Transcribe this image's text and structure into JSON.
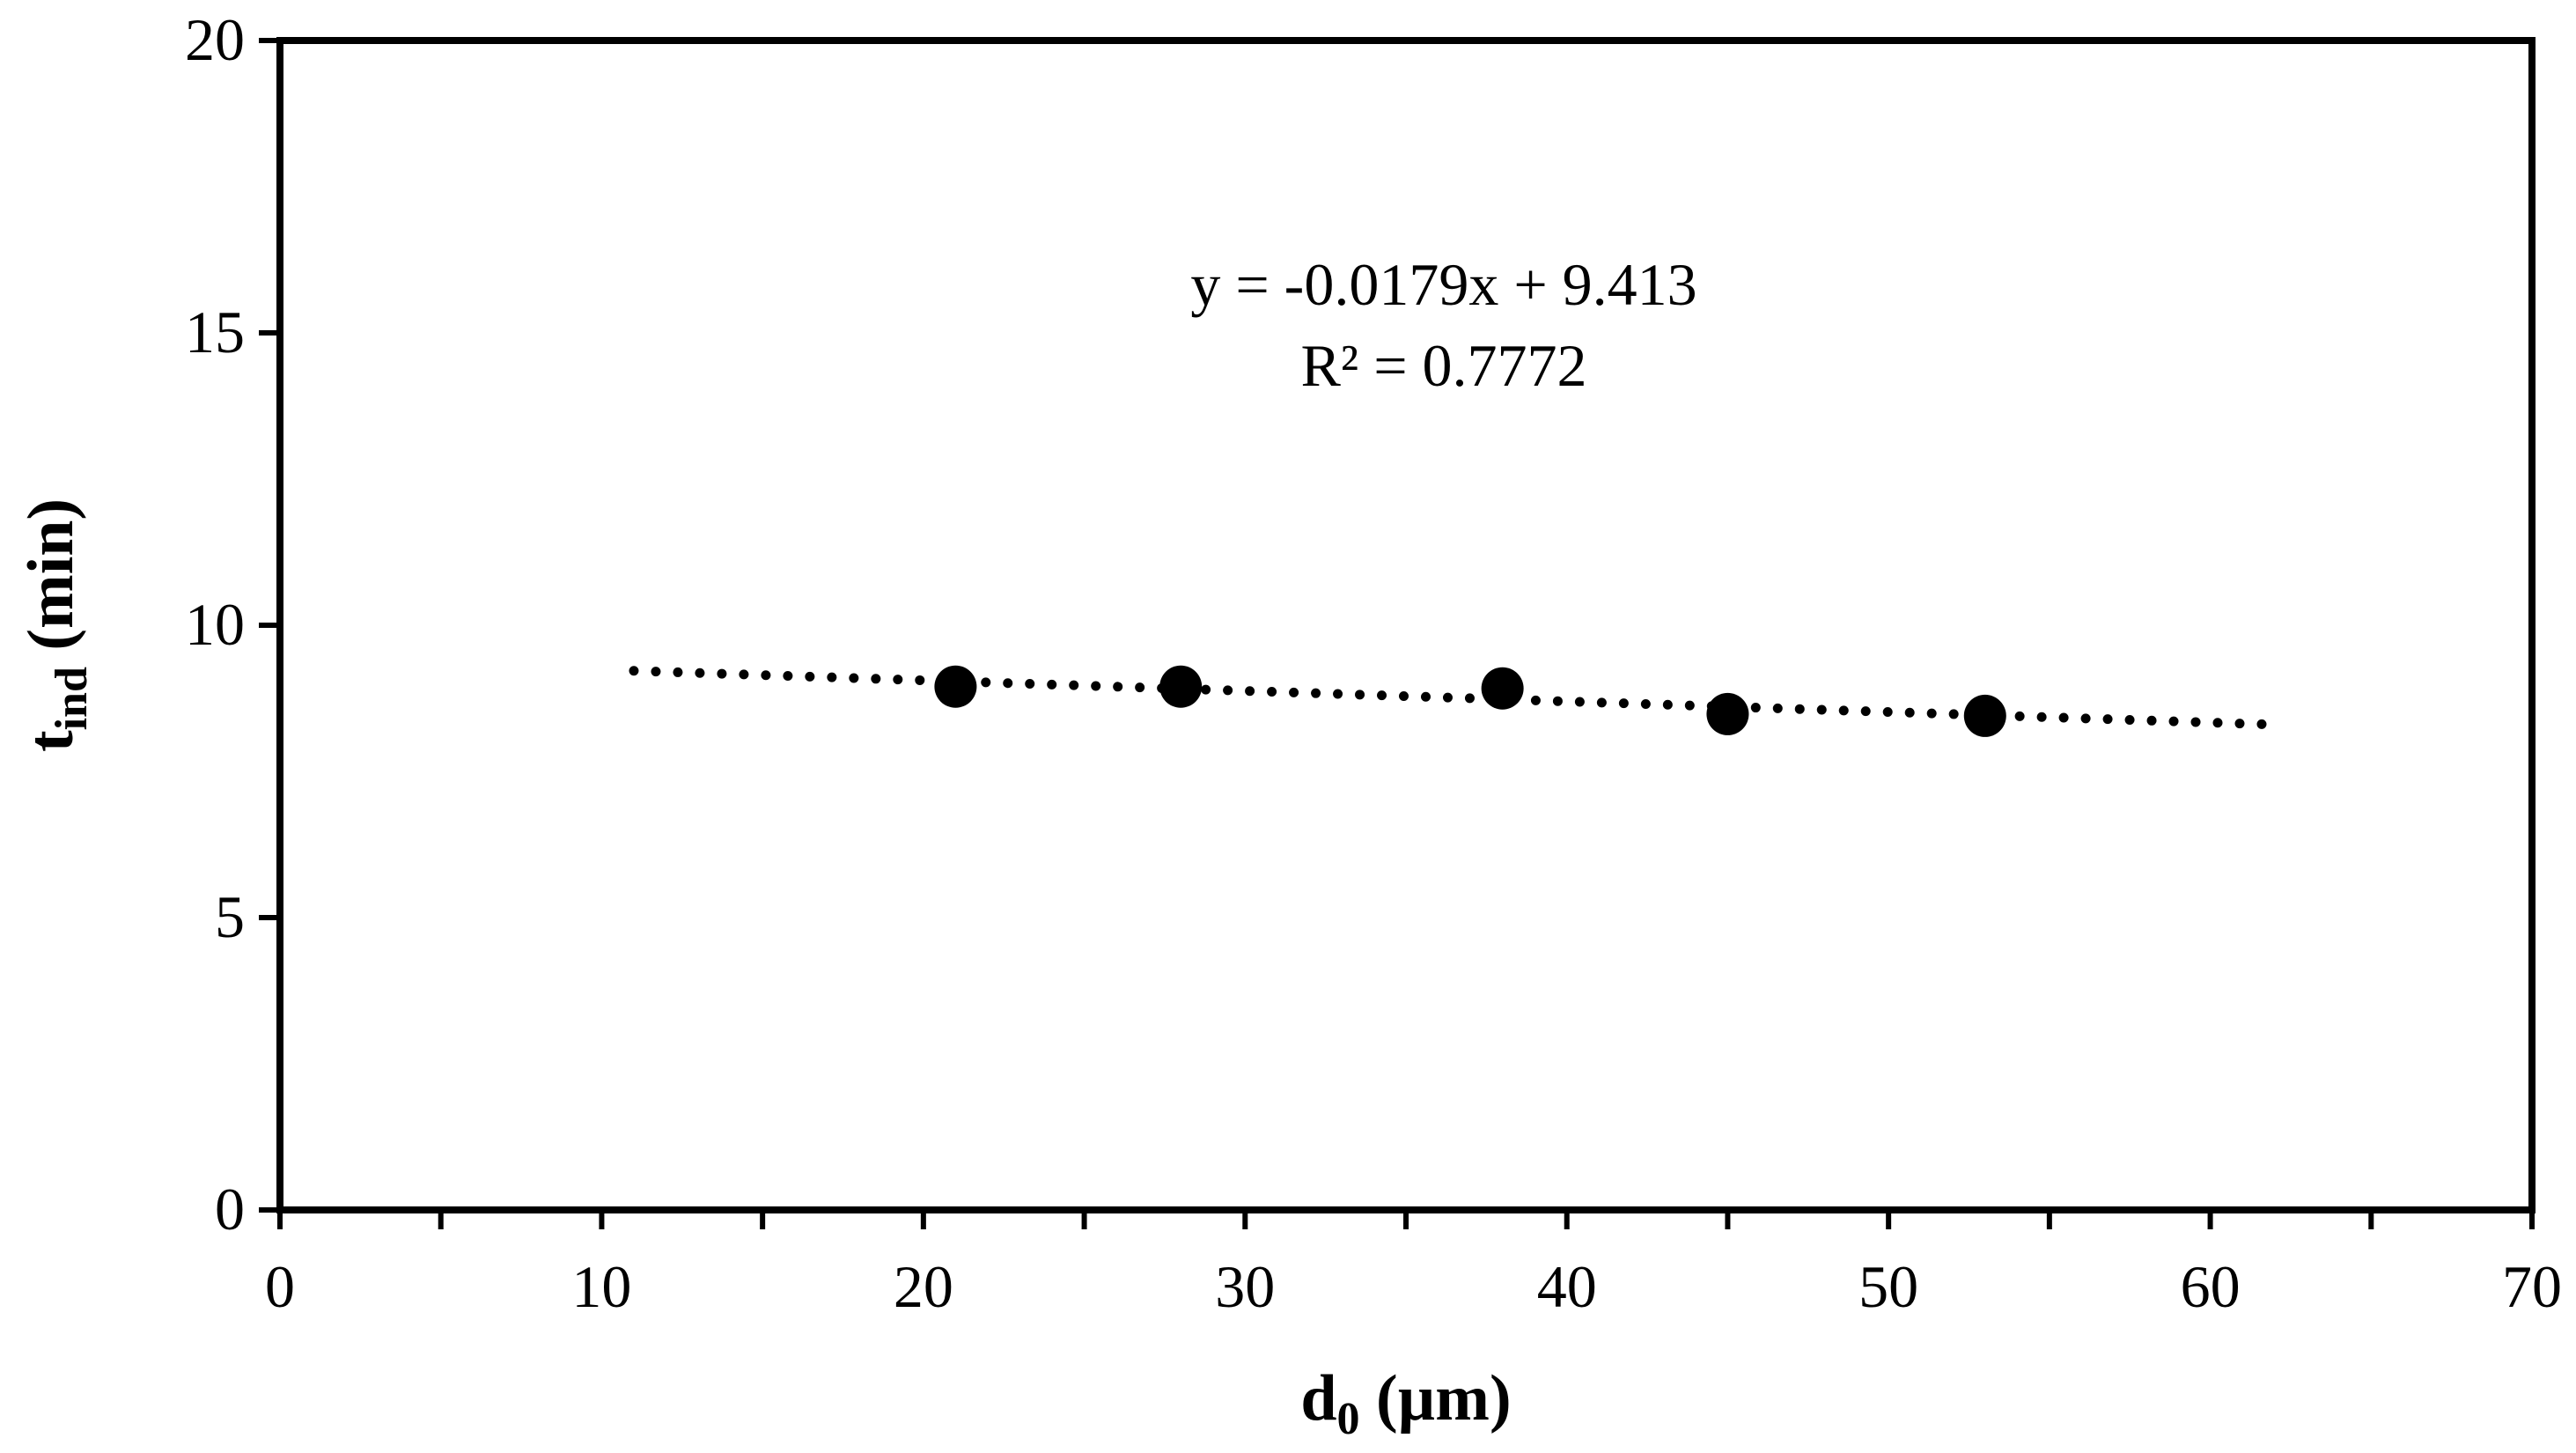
{
  "chart_data": {
    "type": "scatter",
    "xlabel": {
      "main": "d",
      "sub": "0",
      "unit": " (µm)"
    },
    "ylabel": {
      "main": "t",
      "sub": "ind",
      "unit": " (min)"
    },
    "xlim": [
      0,
      70
    ],
    "ylim": [
      0,
      20
    ],
    "x_ticks": [
      "0",
      "10",
      "20",
      "30",
      "40",
      "50",
      "60",
      "70"
    ],
    "y_ticks": [
      "0",
      "5",
      "10",
      "15",
      "20"
    ],
    "x_tick_values": [
      0,
      10,
      20,
      30,
      40,
      50,
      60,
      70
    ],
    "y_tick_values": [
      0,
      5,
      10,
      15,
      20
    ],
    "x_minor_step": 5,
    "grid": false,
    "legend": "none",
    "series": [
      {
        "marker": "filled-circle",
        "color": "#000000",
        "points": [
          {
            "x": 21,
            "y": 8.95
          },
          {
            "x": 28,
            "y": 8.95
          },
          {
            "x": 38,
            "y": 8.92
          },
          {
            "x": 45,
            "y": 8.48
          },
          {
            "x": 53,
            "y": 8.45
          }
        ]
      }
    ],
    "trendline": {
      "style": "dotted",
      "color": "#000000",
      "x_range": [
        11,
        62
      ],
      "y_range": [
        9.22,
        8.3
      ]
    },
    "annotations": {
      "equation": "y = -0.0179x + 9.413",
      "r_squared": "R² = 0.7772"
    }
  }
}
